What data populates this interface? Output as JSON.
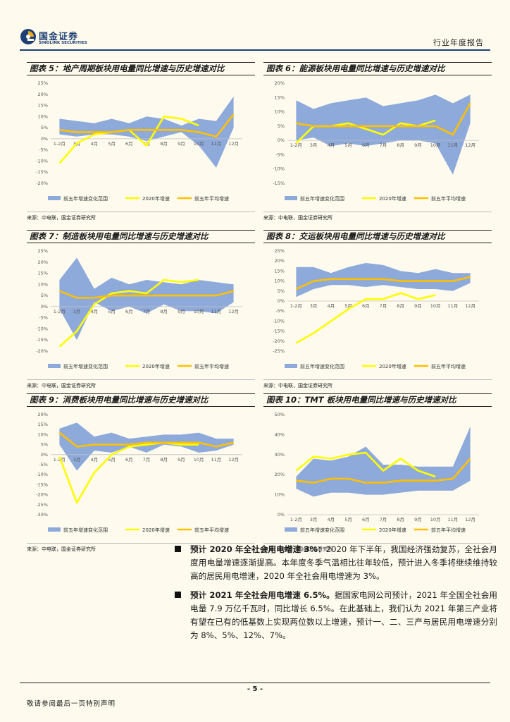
{
  "header": {
    "brand_cn": "国金证券",
    "brand_en": "SINOLINK SECURITIES",
    "report_type": "行业年度报告"
  },
  "colors": {
    "band": "#8eaadb",
    "current": "#ffff00",
    "avg": "#ffc000",
    "brand": "#1d3f73"
  },
  "legend": {
    "band": "前五年增速变化范围",
    "current": "2020年增速",
    "avg": "前五年平均增速"
  },
  "source_text": "来源：中电联，国金证券研究所",
  "chart_data": [
    {
      "title": "图表 5：地产周期板块用电量同比增速与历史增速对比",
      "type": "area",
      "categories": [
        "1-2月",
        "3月",
        "4月",
        "5月",
        "6月",
        "7月",
        "8月",
        "9月",
        "10月",
        "11月",
        "12月"
      ],
      "ylim": [
        -20,
        25
      ],
      "ystep": 5,
      "ytick_suffix": "%",
      "band_high": [
        9,
        8,
        7,
        9,
        7,
        10,
        9,
        6,
        9,
        8,
        19
      ],
      "band_low": [
        2,
        1,
        2,
        2,
        1,
        -1,
        1,
        3,
        -3,
        -13,
        5
      ],
      "series": [
        {
          "name": "2020年增速",
          "values": [
            -11,
            -2,
            2,
            3,
            4,
            -3,
            10,
            9,
            6,
            null,
            null
          ]
        },
        {
          "name": "前五年平均增速",
          "values": [
            4,
            3,
            3,
            3,
            4,
            4,
            4,
            4,
            3,
            1,
            11
          ]
        }
      ]
    },
    {
      "title": "图表 6：能源板块用电量同比增速与历史增速对比",
      "type": "area",
      "categories": [
        "1-2月",
        "3月",
        "4月",
        "5月",
        "6月",
        "7月",
        "8月",
        "9月",
        "10月",
        "11月",
        "12月"
      ],
      "ylim": [
        -15,
        20
      ],
      "ystep": 5,
      "ytick_suffix": "%",
      "band_high": [
        14,
        11,
        13,
        14,
        15,
        12,
        13,
        14,
        16,
        13,
        16
      ],
      "band_low": [
        0,
        1,
        -2,
        -1,
        -2,
        -1,
        0,
        0,
        -1,
        -12,
        6
      ],
      "series": [
        {
          "name": "2020年增速",
          "values": [
            -1,
            5,
            5,
            6,
            4,
            2,
            6,
            5,
            7,
            null,
            null
          ]
        },
        {
          "name": "前五年平均增速",
          "values": [
            6,
            5,
            5,
            5,
            5,
            5,
            5,
            5,
            5,
            2,
            13
          ]
        }
      ]
    },
    {
      "title": "图表 7：制造板块用电量同比增速与历史增速对比",
      "type": "area",
      "categories": [
        "1-2月",
        "3月",
        "4月",
        "5月",
        "6月",
        "7月",
        "8月",
        "9月",
        "10月",
        "11月",
        "12月"
      ],
      "ylim": [
        -20,
        25
      ],
      "ystep": 5,
      "ytick_suffix": "%",
      "band_high": [
        12,
        22,
        8,
        13,
        10,
        12,
        11,
        10,
        12,
        11,
        10
      ],
      "band_low": [
        -1,
        -15,
        2,
        -2,
        0,
        -3,
        1,
        -2,
        -2,
        -3,
        2
      ],
      "series": [
        {
          "name": "2020年增速",
          "values": [
            -18,
            -11,
            1,
            6,
            7,
            6,
            12,
            11,
            12,
            null,
            null
          ]
        },
        {
          "name": "前五年平均增速",
          "values": [
            7,
            4,
            4,
            5,
            5,
            5,
            5,
            5,
            5,
            5,
            7
          ]
        }
      ]
    },
    {
      "title": "图表 8：交运板块用电量同比增速与历史增速对比",
      "type": "area",
      "categories": [
        "1-2月",
        "3月",
        "4月",
        "5月",
        "6月",
        "7月",
        "8月",
        "9月",
        "10月",
        "11月",
        "12月"
      ],
      "ylim": [
        -25,
        25
      ],
      "ystep": 5,
      "ytick_suffix": "%",
      "band_high": [
        17,
        17,
        14,
        17,
        19,
        18,
        15,
        14,
        16,
        14,
        14
      ],
      "band_low": [
        2,
        6,
        8,
        8,
        7,
        8,
        7,
        6,
        6,
        5,
        9
      ],
      "series": [
        {
          "name": "2020年增速",
          "values": [
            -21,
            -16,
            -10,
            -4,
            1,
            1,
            4,
            1,
            3,
            null,
            null
          ]
        },
        {
          "name": "前五年平均增速",
          "values": [
            6,
            10,
            11,
            11,
            11,
            11,
            10,
            10,
            10,
            10,
            12
          ]
        }
      ]
    },
    {
      "title": "图表 9：消费板块用电量同比增速与历史增速对比",
      "type": "area",
      "categories": [
        "1-2月",
        "3月",
        "4月",
        "5月",
        "6月",
        "7月",
        "8月",
        "9月",
        "10月",
        "11月",
        "12月"
      ],
      "ylim": [
        -30,
        20
      ],
      "ystep": 5,
      "ytick_suffix": "%",
      "band_high": [
        13,
        16,
        9,
        11,
        8,
        9,
        10,
        10,
        11,
        8,
        8
      ],
      "band_low": [
        5,
        -8,
        2,
        1,
        4,
        1,
        5,
        4,
        1,
        2,
        5
      ],
      "series": [
        {
          "name": "2020年增速",
          "values": [
            -1,
            -24,
            -9,
            0,
            4,
            5,
            6,
            5,
            5,
            null,
            null
          ]
        },
        {
          "name": "前五年平均增速",
          "values": [
            11,
            4,
            5,
            5,
            5,
            6,
            6,
            6,
            6,
            4,
            6
          ]
        }
      ]
    },
    {
      "title": "图表 10：TMT 板块用电量同比增速与历史增速对比",
      "type": "area",
      "categories": [
        "1-2月",
        "3月",
        "4月",
        "5月",
        "6月",
        "7月",
        "8月",
        "9月",
        "10月",
        "11月",
        "12月"
      ],
      "ylim": [
        0,
        50
      ],
      "ystep": 10,
      "ytick_suffix": "%",
      "band_high": [
        19,
        28,
        27,
        29,
        34,
        25,
        25,
        24,
        24,
        24,
        44
      ],
      "band_low": [
        13,
        9,
        11,
        11,
        10,
        10,
        11,
        12,
        12,
        12,
        17
      ],
      "series": [
        {
          "name": "2020年增速",
          "values": [
            22,
            29,
            28,
            30,
            31,
            22,
            28,
            22,
            19,
            null,
            null
          ]
        },
        {
          "name": "前五年平均增速",
          "values": [
            17,
            16,
            18,
            18,
            16,
            16,
            17,
            17,
            17,
            18,
            28
          ]
        }
      ]
    }
  ],
  "bullets": [
    {
      "lead": "预计 2020 年全社会用电增速 3%：",
      "text": "2020 年下半年，我国经济强劲复苏，全社会月度用电量增速逐渐提高。本年度冬季气温相比往年较低，预计进入冬季将继续维持较高的居民用电增速，2020 年全社会用电增速为 3%。"
    },
    {
      "lead": "预计 2021 年全社会用电增速 6.5%。",
      "text": "据国家电网公司预计，2021 年全国全社会用电量 7.9 万亿千瓦时，同比增长 6.5%。在此基础上，我们认为 2021 年第三产业将有望在已有的低基数上实现两位数以上增速，预计一、二、三产与居民用电增速分别为 8%、5%、12%、7%。"
    }
  ],
  "footer": {
    "page": "- 5 -",
    "disclaimer": "敬请参阅最后一页特别声明"
  }
}
